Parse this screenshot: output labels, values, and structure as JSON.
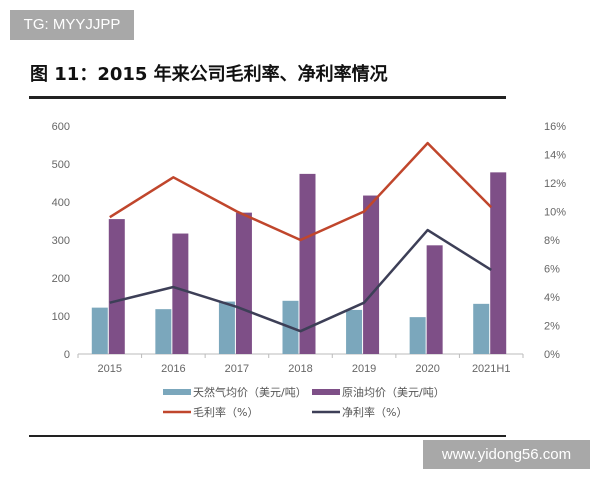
{
  "watermarks": {
    "top_left": "TG: MYYJJPP",
    "bottom_right": "www.yidong56.com"
  },
  "chart_data": {
    "type": "bar",
    "title": "图 11：2015 年来公司毛利率、净利率情况",
    "categories": [
      "2015",
      "2016",
      "2017",
      "2018",
      "2019",
      "2020",
      "2021H1"
    ],
    "y_left": {
      "ylim": [
        0,
        600
      ],
      "ticks": [
        "0",
        "100",
        "200",
        "300",
        "400",
        "500",
        "600"
      ]
    },
    "y_right": {
      "ylim": [
        0,
        16
      ],
      "ticks": [
        "0%",
        "2%",
        "4%",
        "6%",
        "8%",
        "10%",
        "12%",
        "14%",
        "16%"
      ]
    },
    "grid": false,
    "legend_placement": "bottom",
    "series": [
      {
        "name": "天然气均价（美元/吨）",
        "type": "bar",
        "axis": "left",
        "color": "#7ba7bc",
        "values": [
          122,
          118,
          138,
          140,
          116,
          97,
          132
        ]
      },
      {
        "name": "原油均价（美元/吨）",
        "type": "bar",
        "axis": "left",
        "color": "#7e4f87",
        "values": [
          355,
          317,
          372,
          474,
          417,
          286,
          478
        ]
      },
      {
        "name": "毛利率（%）",
        "type": "line",
        "axis": "right",
        "color": "#c0462c",
        "values": [
          9.6,
          12.4,
          10.0,
          8.0,
          10.0,
          14.8,
          10.3
        ]
      },
      {
        "name": "净利率（%）",
        "type": "line",
        "axis": "right",
        "color": "#3d3f57",
        "values": [
          3.6,
          4.7,
          3.3,
          1.6,
          3.6,
          8.7,
          5.9
        ]
      }
    ]
  }
}
